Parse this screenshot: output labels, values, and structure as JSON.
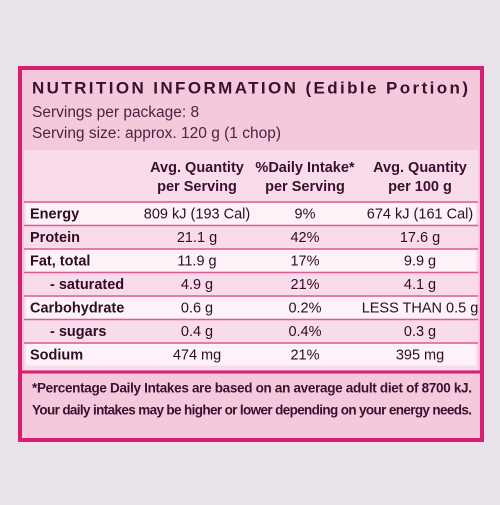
{
  "header": {
    "title": "NUTRITION INFORMATION (Edible Portion)",
    "servings": "Servings per package: 8",
    "serving_size": "Serving size: approx. 120 g (1 chop)"
  },
  "table": {
    "columns": [
      [
        "Avg. Quantity",
        "per Serving"
      ],
      [
        "%Daily Intake*",
        "per Serving"
      ],
      [
        "Avg. Quantity",
        "per 100 g"
      ]
    ],
    "rows": [
      [
        "Energy",
        "809 kJ (193 Cal)",
        "9%",
        "674 kJ (161 Cal)"
      ],
      [
        "Protein",
        "21.1 g",
        "42%",
        "17.6 g"
      ],
      [
        "Fat, total",
        "11.9 g",
        "17%",
        "9.9 g"
      ],
      [
        "- saturated",
        "4.9 g",
        "21%",
        "4.1 g"
      ],
      [
        "Carbohydrate",
        "0.6 g",
        "0.2%",
        "LESS THAN 0.5 g"
      ],
      [
        "- sugars",
        "0.4 g",
        "0.4%",
        "0.3 g"
      ],
      [
        "Sodium",
        "474 mg",
        "21%",
        "395 mg"
      ]
    ]
  },
  "footnote": [
    "*Percentage Daily Intakes are based on an average adult diet of 8700 kJ.",
    "Your daily intakes may be higher or lower depending on your energy needs."
  ]
}
